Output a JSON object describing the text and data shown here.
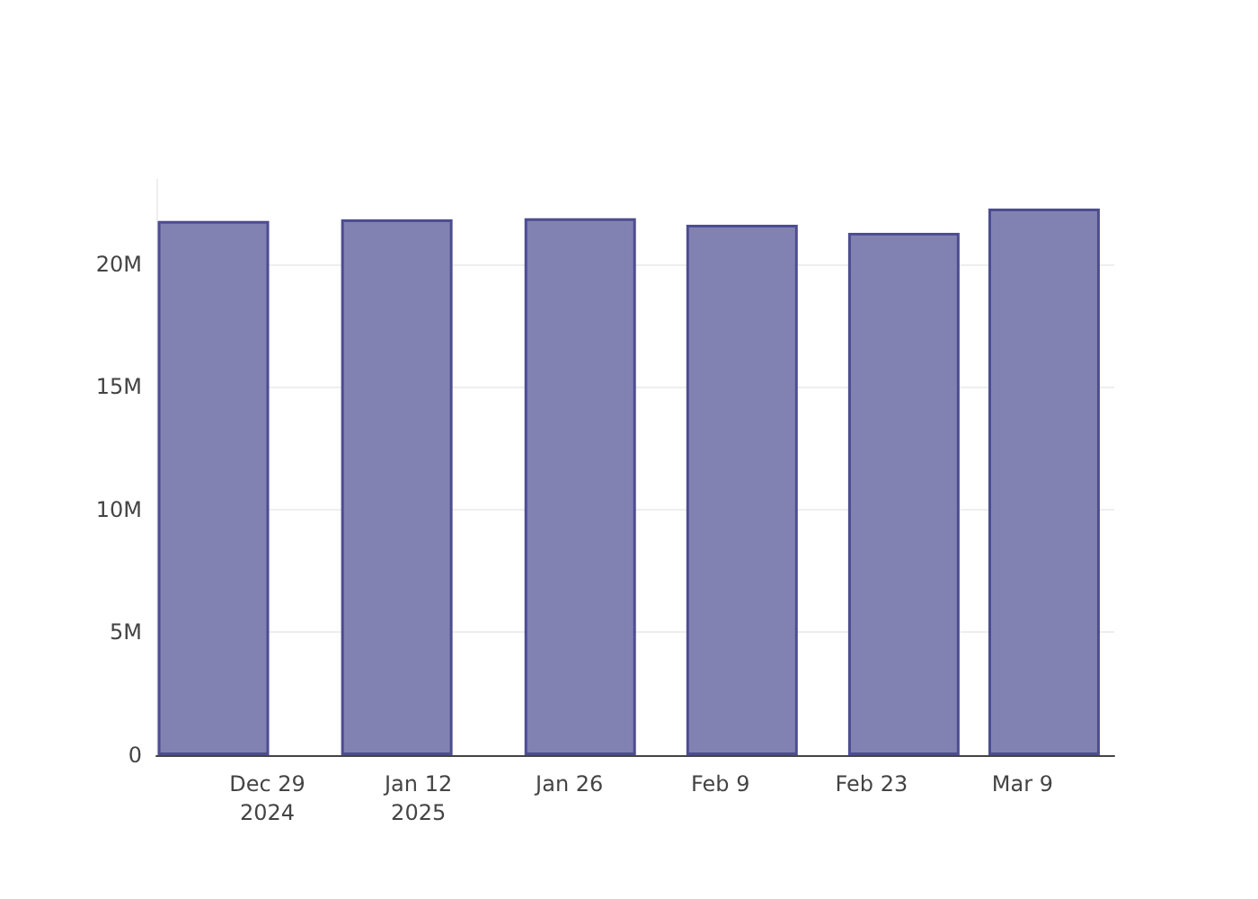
{
  "chart_data": {
    "type": "bar",
    "x": [
      "2024-12-24",
      "2025-01-10",
      "2025-01-27",
      "2025-02-11",
      "2025-02-26",
      "2025-03-11"
    ],
    "values": [
      21760000,
      21830000,
      21870000,
      21610000,
      21280000,
      22270000
    ],
    "color": "#7f7fb0",
    "xlim": [
      "2024-12-18T17:00",
      "2025-03-17T12:00"
    ],
    "xticks": [
      {
        "value": "2024-12-29",
        "label": "Dec 29\n2024"
      },
      {
        "value": "2025-01-12",
        "label": "Jan 12\n2025"
      },
      {
        "value": "2025-01-26",
        "label": "Jan 26"
      },
      {
        "value": "2025-02-09",
        "label": "Feb 9"
      },
      {
        "value": "2025-02-23",
        "label": "Feb 23"
      },
      {
        "value": "2025-03-09",
        "label": "Mar 9"
      }
    ],
    "ylim": [
      0,
      23440000
    ],
    "yticks": [
      {
        "value": 0,
        "label": "0"
      },
      {
        "value": 5000000,
        "label": "5M"
      },
      {
        "value": 10000000,
        "label": "10M"
      },
      {
        "value": 15000000,
        "label": "15M"
      },
      {
        "value": 20000000,
        "label": "20M"
      }
    ],
    "grid": "y"
  }
}
